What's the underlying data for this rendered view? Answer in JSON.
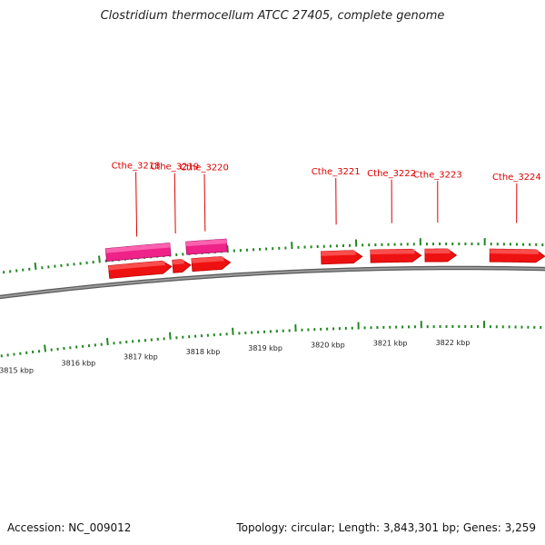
{
  "title": "Clostridium thermocellum ATCC 27405, complete genome",
  "footer": {
    "accession": "Accession: NC_009012",
    "summary": "Topology: circular; Length: 3,843,301 bp; Genes: 3,259"
  },
  "colors": {
    "gene_forward": "#ee1111",
    "feature_magenta": "#ee2288",
    "tick_green": "#228822",
    "label_red": "#dd0000",
    "backbone_gray": "#808080"
  },
  "kbp_ticks": [
    {
      "label": "3815 kbp",
      "kb": 3815
    },
    {
      "label": "3816 kbp",
      "kb": 3816
    },
    {
      "label": "3817 kbp",
      "kb": 3817
    },
    {
      "label": "3818 kbp",
      "kb": 3818
    },
    {
      "label": "3819 kbp",
      "kb": 3819
    },
    {
      "label": "3820 kbp",
      "kb": 3820
    },
    {
      "label": "3821 kbp",
      "kb": 3821
    },
    {
      "label": "3822 kbp",
      "kb": 3822
    }
  ],
  "gene_labels": [
    {
      "name": "Cthe_3218",
      "kb": 3817.11
    },
    {
      "name": "Cthe_3219",
      "kb": 3817.71
    },
    {
      "name": "Cthe_3220",
      "kb": 3818.17
    },
    {
      "name": "Cthe_3221",
      "kb": 3820.2
    },
    {
      "name": "Cthe_3222",
      "kb": 3821.06
    },
    {
      "name": "Cthe_3223",
      "kb": 3821.77
    },
    {
      "name": "Cthe_3224",
      "kb": 3822.99
    }
  ],
  "genes_forward": [
    {
      "start": 3816.63,
      "end": 3817.61
    },
    {
      "start": 3817.63,
      "end": 3817.91
    },
    {
      "start": 3817.93,
      "end": 3818.53
    },
    {
      "start": 3819.95,
      "end": 3820.59
    },
    {
      "start": 3820.72,
      "end": 3821.51
    },
    {
      "start": 3821.57,
      "end": 3822.06
    },
    {
      "start": 3822.58,
      "end": 3823.44
    }
  ],
  "features_magenta": [
    {
      "start": 3816.61,
      "end": 3817.61
    },
    {
      "start": 3817.86,
      "end": 3818.49
    }
  ]
}
